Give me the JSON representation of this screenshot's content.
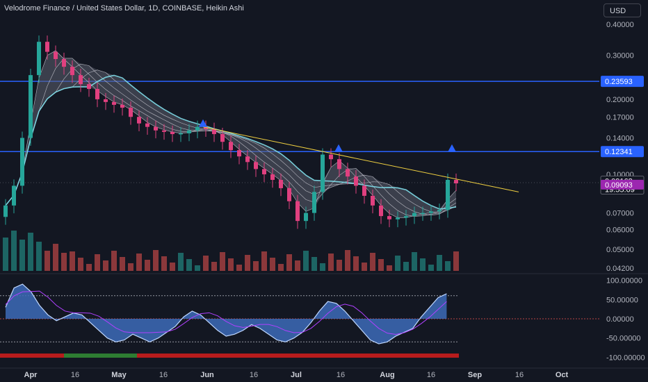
{
  "header": {
    "title": "Velodrome Finance / United States Dollar, 1D, COINBASE, Heikin Ashi",
    "currency": "USD"
  },
  "colors": {
    "background": "#131722",
    "up": "#26a69a",
    "down": "#ef5350",
    "pink": "#e0407f",
    "level_line": "#2962ff",
    "trendline": "#f0d040",
    "ribbon_outer": "#80deea",
    "price_tag": "#131722",
    "last_price_tag": "#9c27b0"
  },
  "chart_data": [
    {
      "type": "candlestick",
      "title": "Velodrome Finance / United States Dollar, 1D, COINBASE, Heikin Ashi",
      "y_scale": "log",
      "ylim": [
        0.041,
        0.44
      ],
      "y_ticks": [
        "0.40000",
        "0.30000",
        "0.20000",
        "0.17000",
        "0.14000",
        "0.10000",
        "0.07000",
        "0.06000",
        "0.05000",
        "0.04200"
      ],
      "x_ticks": [
        "Apr",
        "16",
        "May",
        "16",
        "Jun",
        "16",
        "Jul",
        "16",
        "Aug",
        "16",
        "Sep",
        "16",
        "Oct"
      ],
      "levels": [
        {
          "name": "upper resistance",
          "value": 0.23593,
          "label": "0.23593"
        },
        {
          "name": "lower resistance",
          "value": 0.12341,
          "label": "0.12341"
        }
      ],
      "price_tags": [
        {
          "value": 0.09168,
          "label": "0.09168",
          "sublabel": "19:55:09"
        },
        {
          "value": 0.09093,
          "label": "0.09093"
        }
      ],
      "trendline": {
        "start": [
          "Jun 1",
          0.155
        ],
        "end": [
          "Sep 16",
          0.085
        ]
      },
      "close_series": [
        0.075,
        0.09,
        0.14,
        0.25,
        0.34,
        0.31,
        0.29,
        0.27,
        0.25,
        0.23,
        0.22,
        0.2,
        0.195,
        0.19,
        0.185,
        0.17,
        0.16,
        0.155,
        0.15,
        0.148,
        0.145,
        0.146,
        0.15,
        0.155,
        0.152,
        0.145,
        0.135,
        0.125,
        0.118,
        0.112,
        0.105,
        0.1,
        0.095,
        0.088,
        0.078,
        0.065,
        0.07,
        0.085,
        0.12,
        0.115,
        0.105,
        0.098,
        0.09,
        0.082,
        0.075,
        0.068,
        0.066,
        0.067,
        0.068,
        0.07,
        0.07,
        0.071,
        0.072,
        0.095,
        0.092
      ]
    },
    {
      "type": "oscillator",
      "ylim": [
        -110,
        110
      ],
      "y_ticks": [
        "100.00000",
        "50.00000",
        "0.00000",
        "-50.00000",
        "-100.00000"
      ],
      "levels": [
        60,
        -60
      ],
      "wave_series": [
        30,
        80,
        90,
        70,
        35,
        10,
        -5,
        5,
        15,
        10,
        -10,
        -30,
        -50,
        -60,
        -55,
        -40,
        -50,
        -60,
        -50,
        -35,
        -20,
        5,
        20,
        10,
        -10,
        -30,
        -45,
        -40,
        -30,
        -15,
        -25,
        -40,
        -55,
        -60,
        -50,
        -35,
        -10,
        20,
        45,
        40,
        20,
        -5,
        -30,
        -55,
        -65,
        -60,
        -45,
        -35,
        -25,
        5,
        30,
        55,
        65
      ]
    }
  ]
}
